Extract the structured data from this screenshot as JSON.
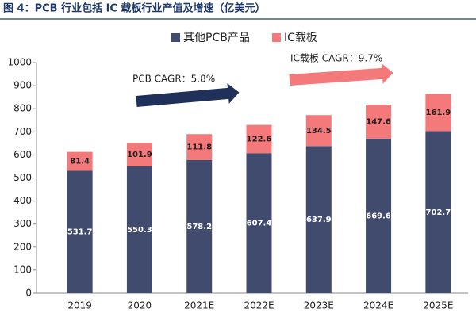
{
  "chart_data": {
    "type": "stacked_bar",
    "title": "图 4：PCB 行业包括 IC 载板行业产值及增速（亿美元）",
    "categories": [
      "2019",
      "2020",
      "2021E",
      "2022E",
      "2023E",
      "2024E",
      "2025E"
    ],
    "series": [
      {
        "name": "其他PCB产品",
        "color": "#404b6e",
        "values": [
          531.7,
          550.3,
          578.2,
          607.4,
          637.9,
          669.6,
          702.7
        ]
      },
      {
        "name": "IC载板",
        "color": "#f3797b",
        "values": [
          81.4,
          101.9,
          111.8,
          122.6,
          134.5,
          147.6,
          161.9
        ]
      }
    ],
    "ylim": [
      0,
      1000
    ],
    "yticks": [
      0,
      100,
      200,
      300,
      400,
      500,
      600,
      700,
      800,
      900,
      1000
    ],
    "annotations": [
      "PCB CAGR：5.8%",
      "IC载板 CAGR：9.7%"
    ]
  }
}
